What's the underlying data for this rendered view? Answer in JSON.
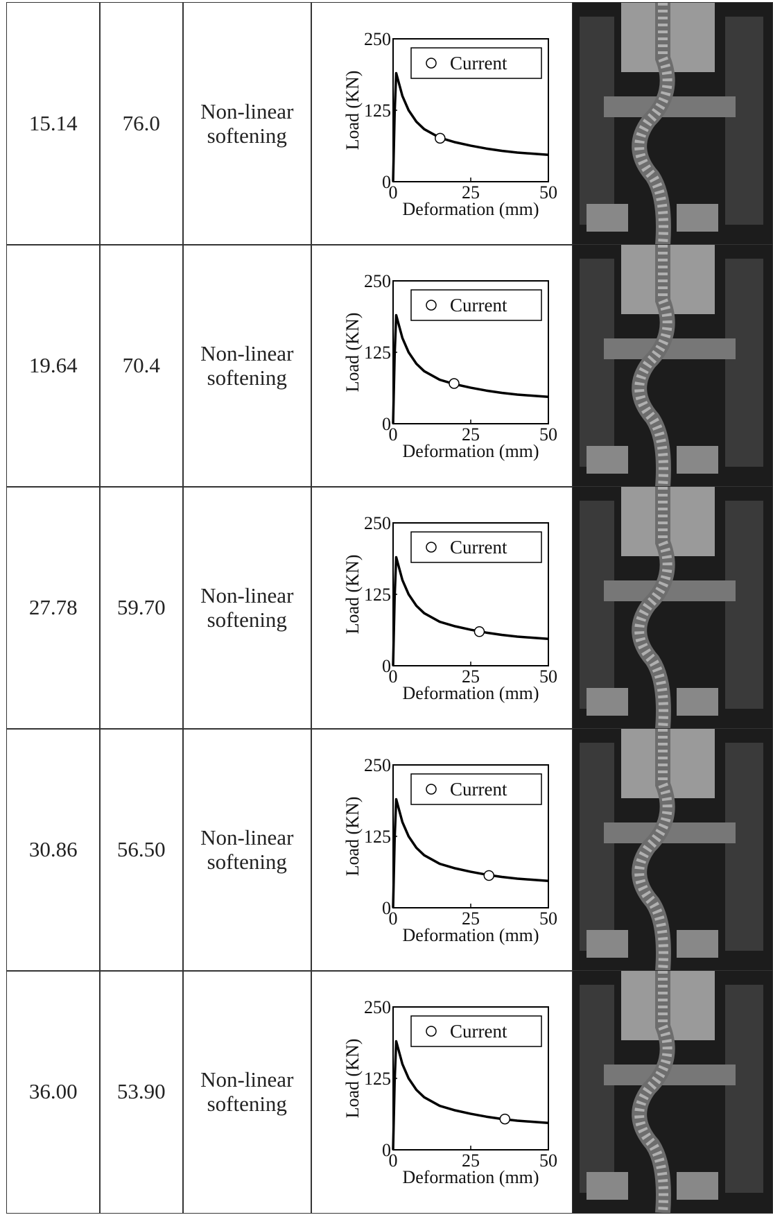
{
  "table": {
    "rows": [
      {
        "deformation": "15.14",
        "load": "76.0",
        "behavior": "Non-linear softening"
      },
      {
        "deformation": "19.64",
        "load": "70.4",
        "behavior": "Non-linear softening"
      },
      {
        "deformation": "27.78",
        "load": "59.70",
        "behavior": "Non-linear softening"
      },
      {
        "deformation": "30.86",
        "load": "56.50",
        "behavior": "Non-linear softening"
      },
      {
        "deformation": "36.00",
        "load": "53.90",
        "behavior": "Non-linear softening"
      }
    ]
  },
  "chart_data": [
    {
      "type": "line",
      "xlabel": "Deformation (mm)",
      "ylabel": "Load (KN)",
      "xlim": [
        0,
        50
      ],
      "ylim": [
        0,
        250
      ],
      "xticks": [
        0,
        25,
        50
      ],
      "yticks": [
        0,
        125,
        250
      ],
      "x": [
        0,
        0.5,
        1,
        2,
        3,
        5,
        7.5,
        10,
        15,
        20,
        25,
        30,
        35,
        40,
        45,
        50
      ],
      "series": [
        {
          "color": "#000000",
          "values": [
            0,
            120,
            190,
            170,
            150,
            125,
            105,
            92,
            77,
            69,
            63,
            58,
            54,
            51,
            49,
            47
          ]
        },
        {
          "name": "Current",
          "type": "scatter",
          "color": "#ffffff",
          "x": [
            15.14
          ],
          "values": [
            76.0
          ]
        }
      ]
    },
    {
      "type": "line",
      "xlabel": "Deformation (mm)",
      "ylabel": "Load (KN)",
      "xlim": [
        0,
        50
      ],
      "ylim": [
        0,
        250
      ],
      "xticks": [
        0,
        25,
        50
      ],
      "yticks": [
        0,
        125,
        250
      ],
      "x": [
        0,
        0.5,
        1,
        2,
        3,
        5,
        7.5,
        10,
        15,
        20,
        25,
        30,
        35,
        40,
        45,
        50
      ],
      "series": [
        {
          "color": "#000000",
          "values": [
            0,
            120,
            190,
            170,
            150,
            125,
            105,
            92,
            77,
            69,
            63,
            58,
            54,
            51,
            49,
            47
          ]
        },
        {
          "name": "Current",
          "type": "scatter",
          "color": "#ffffff",
          "x": [
            19.64
          ],
          "values": [
            70.4
          ]
        }
      ]
    },
    {
      "type": "line",
      "xlabel": "Deformation (mm)",
      "ylabel": "Load (KN)",
      "xlim": [
        0,
        50
      ],
      "ylim": [
        0,
        250
      ],
      "xticks": [
        0,
        25,
        50
      ],
      "yticks": [
        0,
        125,
        250
      ],
      "x": [
        0,
        0.5,
        1,
        2,
        3,
        5,
        7.5,
        10,
        15,
        20,
        25,
        30,
        35,
        40,
        45,
        50
      ],
      "series": [
        {
          "color": "#000000",
          "values": [
            0,
            120,
            190,
            170,
            150,
            125,
            105,
            92,
            77,
            69,
            63,
            58,
            54,
            51,
            49,
            47
          ]
        },
        {
          "name": "Current",
          "type": "scatter",
          "color": "#ffffff",
          "x": [
            27.78
          ],
          "values": [
            59.7
          ]
        }
      ]
    },
    {
      "type": "line",
      "xlabel": "Deformation (mm)",
      "ylabel": "Load (KN)",
      "xlim": [
        0,
        50
      ],
      "ylim": [
        0,
        250
      ],
      "xticks": [
        0,
        25,
        50
      ],
      "yticks": [
        0,
        125,
        250
      ],
      "x": [
        0,
        0.5,
        1,
        2,
        3,
        5,
        7.5,
        10,
        15,
        20,
        25,
        30,
        35,
        40,
        45,
        50
      ],
      "series": [
        {
          "color": "#000000",
          "values": [
            0,
            120,
            190,
            170,
            150,
            125,
            105,
            92,
            77,
            69,
            63,
            58,
            54,
            51,
            49,
            47
          ]
        },
        {
          "name": "Current",
          "type": "scatter",
          "color": "#ffffff",
          "x": [
            30.86
          ],
          "values": [
            56.5
          ]
        }
      ]
    },
    {
      "type": "line",
      "xlabel": "Deformation (mm)",
      "ylabel": "Load (KN)",
      "xlim": [
        0,
        50
      ],
      "ylim": [
        0,
        250
      ],
      "xticks": [
        0,
        25,
        50
      ],
      "yticks": [
        0,
        125,
        250
      ],
      "x": [
        0,
        0.5,
        1,
        2,
        3,
        5,
        7.5,
        10,
        15,
        20,
        25,
        30,
        35,
        40,
        45,
        50
      ],
      "series": [
        {
          "color": "#000000",
          "values": [
            0,
            120,
            190,
            170,
            150,
            125,
            105,
            92,
            77,
            69,
            63,
            58,
            54,
            51,
            49,
            47
          ]
        },
        {
          "name": "Current",
          "type": "scatter",
          "color": "#ffffff",
          "x": [
            36.0
          ],
          "values": [
            53.9
          ]
        }
      ]
    }
  ]
}
